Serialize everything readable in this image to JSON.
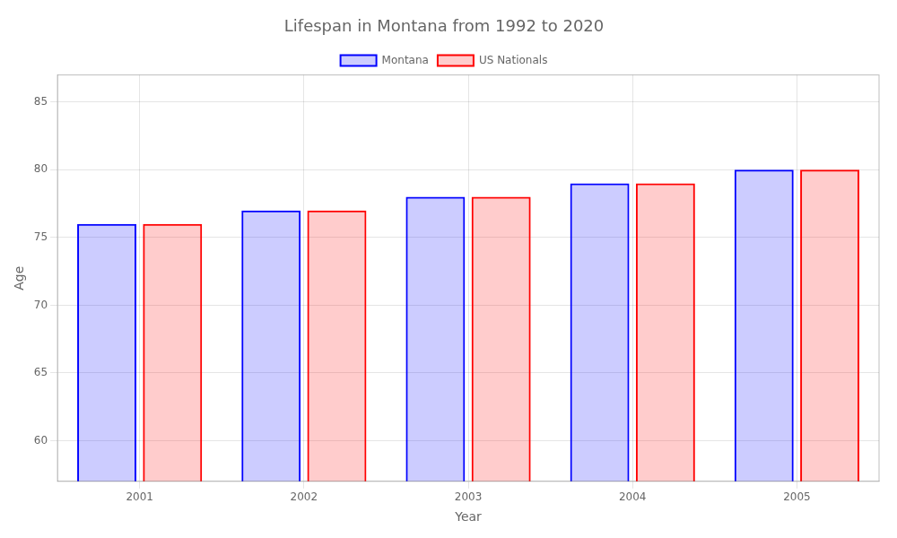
{
  "chart_data": {
    "type": "bar",
    "title": "Lifespan in Montana from 1992 to 2020",
    "x_label": "Year",
    "y_label": "Age",
    "categories": [
      "2001",
      "2002",
      "2003",
      "2004",
      "2005"
    ],
    "series": [
      {
        "name": "Montana",
        "color": "#0000ff",
        "values": [
          76,
          77,
          78,
          79,
          80
        ]
      },
      {
        "name": "US Nationals",
        "color": "#ff0000",
        "values": [
          76,
          77,
          78,
          79,
          80
        ]
      }
    ],
    "ylim": [
      57,
      87
    ],
    "yticks": [
      60,
      65,
      70,
      75,
      80,
      85
    ],
    "grid": true,
    "legend": "top"
  }
}
